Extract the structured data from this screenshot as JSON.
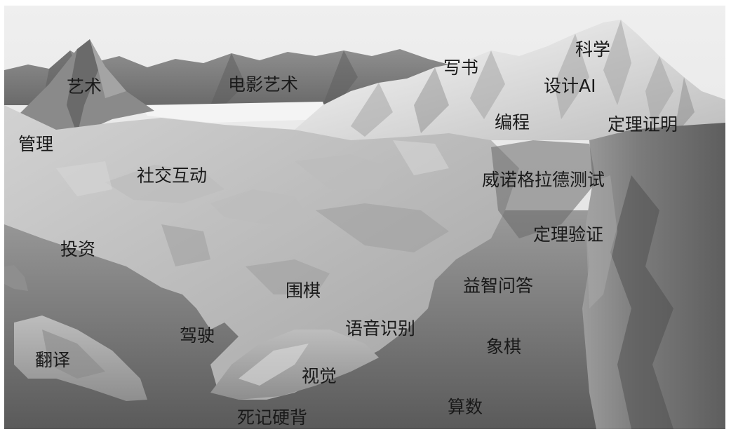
{
  "labels": {
    "art": "艺术",
    "film_art": "电影艺术",
    "writing": "写书",
    "science": "科学",
    "design_ai": "设计AI",
    "programming": "编程",
    "theorem_proving": "定理证明",
    "management": "管理",
    "social_interaction": "社交互动",
    "winograd_test": "威诺格拉德测试",
    "theorem_verification": "定理验证",
    "investment": "投资",
    "go": "围棋",
    "trivia_qa": "益智问答",
    "driving": "驾驶",
    "speech_recognition": "语音识别",
    "chess": "象棋",
    "translation": "翻译",
    "vision": "视觉",
    "arithmetic": "算数",
    "rote_memorization": "死记硬背"
  }
}
